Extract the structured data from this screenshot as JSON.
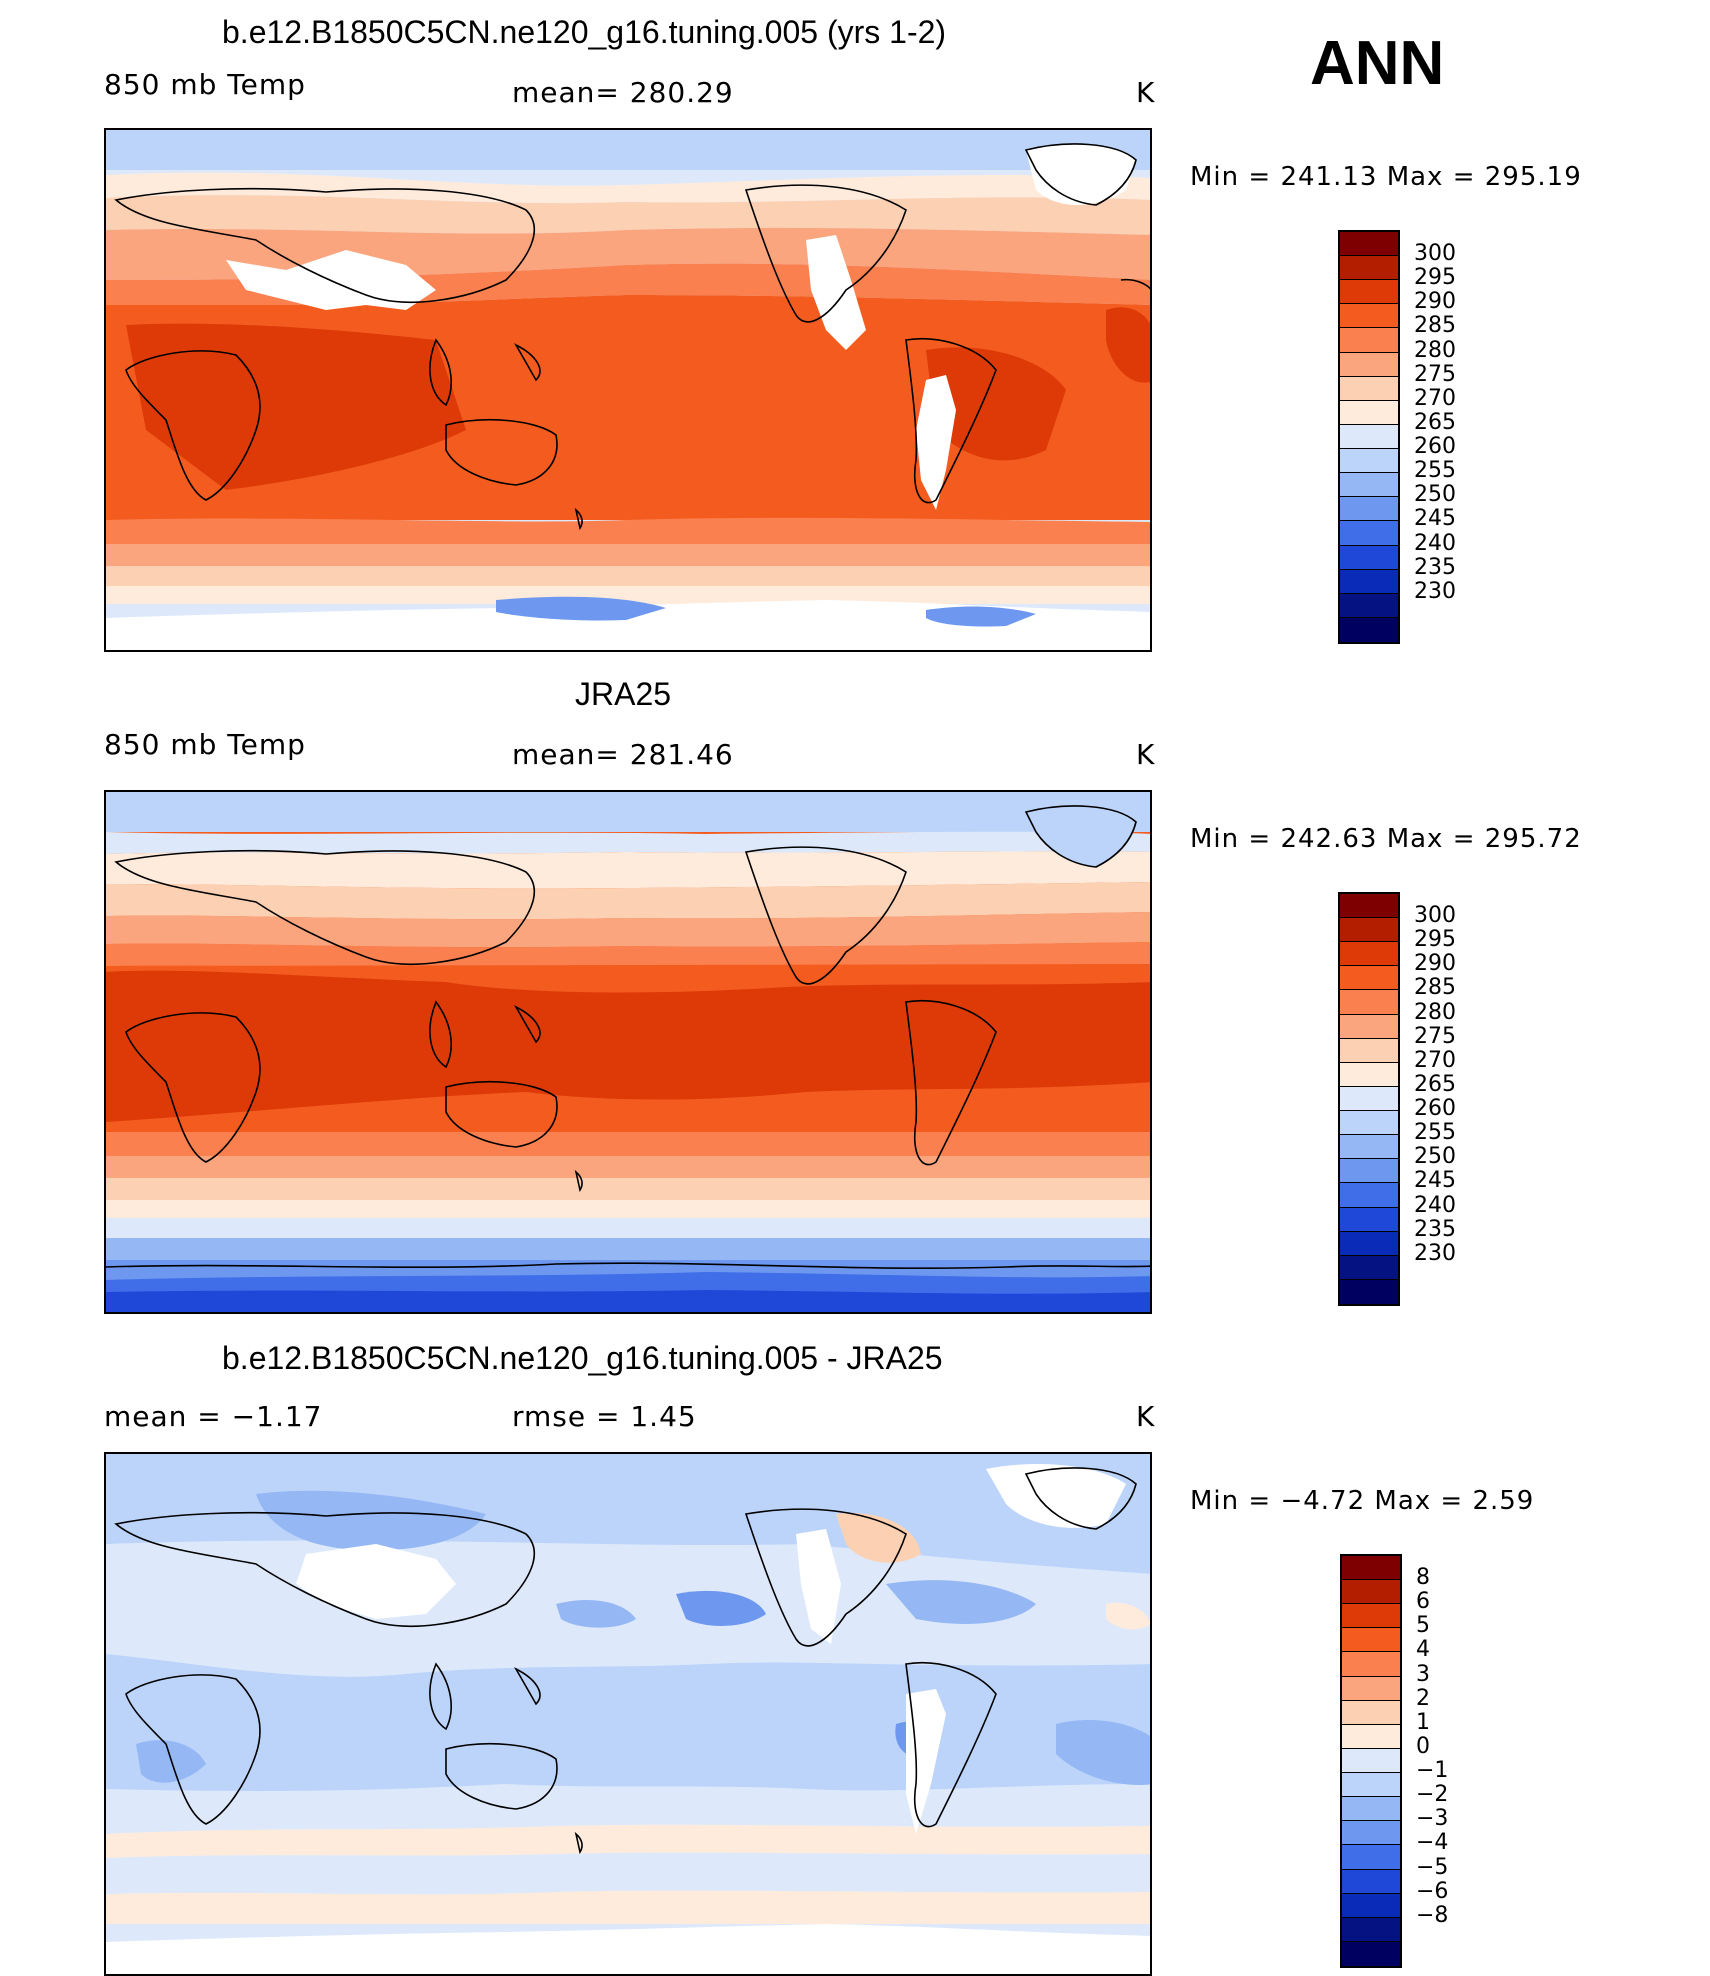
{
  "season": "ANN",
  "units_label": "K",
  "panels": [
    {
      "title": "b.e12.B1850C5CN.ne120_g16.tuning.005 (yrs 1-2)",
      "left_label": "850 mb Temp",
      "center_label": "mean=  280.29",
      "right_label": "K",
      "minmax": "Min  =  241.13  Max  =  295.19",
      "colorbar_labels": [
        "300",
        "295",
        "290",
        "285",
        "280",
        "275",
        "270",
        "265",
        "260",
        "255",
        "250",
        "245",
        "240",
        "235",
        "230"
      ]
    },
    {
      "title": "JRA25",
      "left_label": "850 mb Temp",
      "center_label": "mean=  281.46",
      "right_label": "K",
      "minmax": "Min  =  242.63  Max  =  295.72",
      "colorbar_labels": [
        "300",
        "295",
        "290",
        "285",
        "280",
        "275",
        "270",
        "265",
        "260",
        "255",
        "250",
        "245",
        "240",
        "235",
        "230"
      ]
    },
    {
      "title": "b.e12.B1850C5CN.ne120_g16.tuning.005 - JRA25",
      "left_label": "mean  =    −1.17",
      "center_label": "rmse  =     1.45",
      "right_label": "K",
      "minmax": "Min  =    −4.72  Max  =      2.59",
      "colorbar_labels": [
        "8",
        "6",
        "5",
        "4",
        "3",
        "2",
        "1",
        "0",
        "−1",
        "−2",
        "−3",
        "−4",
        "−5",
        "−6",
        "−8"
      ]
    }
  ],
  "colors": {
    "abs_scale": [
      "#7f0000",
      "#b31e00",
      "#dd3a08",
      "#f45c1f",
      "#fa8050",
      "#fba57e",
      "#fcd0b2",
      "#feebdc",
      "#dde9fb",
      "#bcd4f9",
      "#95b8f5",
      "#6e98f0",
      "#3f6ee8",
      "#2048d8",
      "#0a2ab8",
      "#051282",
      "#000060"
    ],
    "diff_scale": [
      "#7f0000",
      "#b31e00",
      "#dd3a08",
      "#f45c1f",
      "#fa8050",
      "#fba57e",
      "#fcd0b2",
      "#feebdc",
      "#dde9fb",
      "#bcd4f9",
      "#95b8f5",
      "#6e98f0",
      "#3f6ee8",
      "#2048d8",
      "#0a2ab8",
      "#051282",
      "#000060"
    ],
    "land_outline": "#000000",
    "missing": "#ffffff"
  }
}
